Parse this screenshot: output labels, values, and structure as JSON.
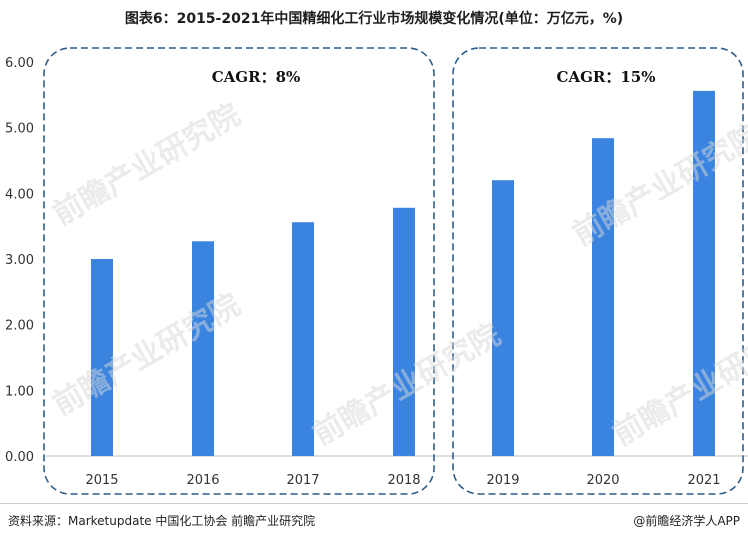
{
  "page": {
    "title": "图表6：2015-2021年中国精细化工行业市场规模变化情况(单位：万亿元，%)",
    "source": "资料来源：Marketupdate 中国化工协会 前瞻产业研究院",
    "credit": "@前瞻经济学人APP",
    "watermark": "前瞻产业研究院"
  },
  "colors": {
    "bar": "#3a84e0",
    "group_border": "#2f5d8a",
    "axis": "#bfbfbf",
    "text": "#333333"
  },
  "chart_data": {
    "type": "bar",
    "title": "图表6：2015-2021年中国精细化工行业市场规模变化情况(单位：万亿元，%)",
    "categories": [
      "2015",
      "2016",
      "2017",
      "2018",
      "2019",
      "2020",
      "2021"
    ],
    "values": [
      3.0,
      3.27,
      3.56,
      3.78,
      4.2,
      4.84,
      5.56
    ],
    "ylim": [
      0,
      6
    ],
    "yticks": [
      "0.00",
      "1.00",
      "2.00",
      "3.00",
      "4.00",
      "5.00",
      "6.00"
    ],
    "grid": false,
    "groups": [
      {
        "label": "CAGR：8%",
        "categories": [
          "2015",
          "2016",
          "2017",
          "2018"
        ]
      },
      {
        "label": "CAGR：15%",
        "categories": [
          "2019",
          "2020",
          "2021"
        ]
      }
    ]
  }
}
